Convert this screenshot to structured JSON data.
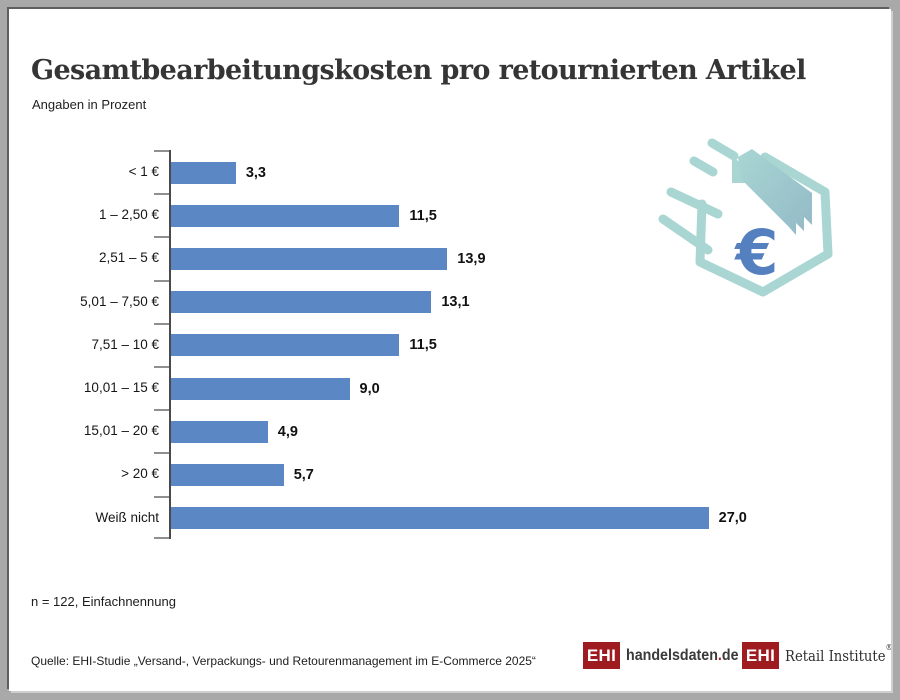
{
  "page": {
    "title": "Gesamtbearbeitungskosten pro retournierten Artikel",
    "subtitle": "Angaben in Prozent",
    "footnote": "n = 122, Einfachnennung",
    "source": "Quelle: EHI-Studie „Versand-, Verpackungs- und Retourenmanagement im E-Commerce 2025“"
  },
  "chart_data": {
    "type": "bar",
    "orientation": "horizontal",
    "title": "Gesamtbearbeitungskosten pro retournierten Artikel",
    "xlabel": "",
    "ylabel": "",
    "unit": "Prozent",
    "categories": [
      "< 1 €",
      "1 – 2,50 €",
      "2,51 – 5 €",
      "5,01 – 7,50 €",
      "7,51 – 10 €",
      "10,01 – 15 €",
      "15,01 – 20 €",
      "> 20 €",
      "Weiß nicht"
    ],
    "values": [
      3.3,
      11.5,
      13.9,
      13.1,
      11.5,
      9.0,
      4.9,
      5.7,
      27.0
    ],
    "value_labels": [
      "3,3",
      "11,5",
      "13,9",
      "13,1",
      "11,5",
      "9,0",
      "4,9",
      "5,7",
      "27,0"
    ],
    "xlim": [
      0,
      28
    ],
    "grid": false,
    "legend": false
  },
  "icon": {
    "name": "flying-parcel-euro-icon",
    "euro_symbol": "€"
  },
  "logos": [
    {
      "box": "EHI",
      "text": "handelsdaten",
      "dot": ".",
      "tld": "de"
    },
    {
      "box": "EHI",
      "text": "Retail Institute",
      "reg": "®"
    }
  ],
  "colors": {
    "bar": "#5b87c5",
    "axis": "#4a4a4a",
    "tick": "#8f8f8f",
    "logo_red": "#9e1b20",
    "icon_teal": "#a9d6d3",
    "icon_band_dark": "#93b9c7",
    "icon_euro_blue": "#5580c0",
    "frame_gray": "#a9a9a9"
  }
}
